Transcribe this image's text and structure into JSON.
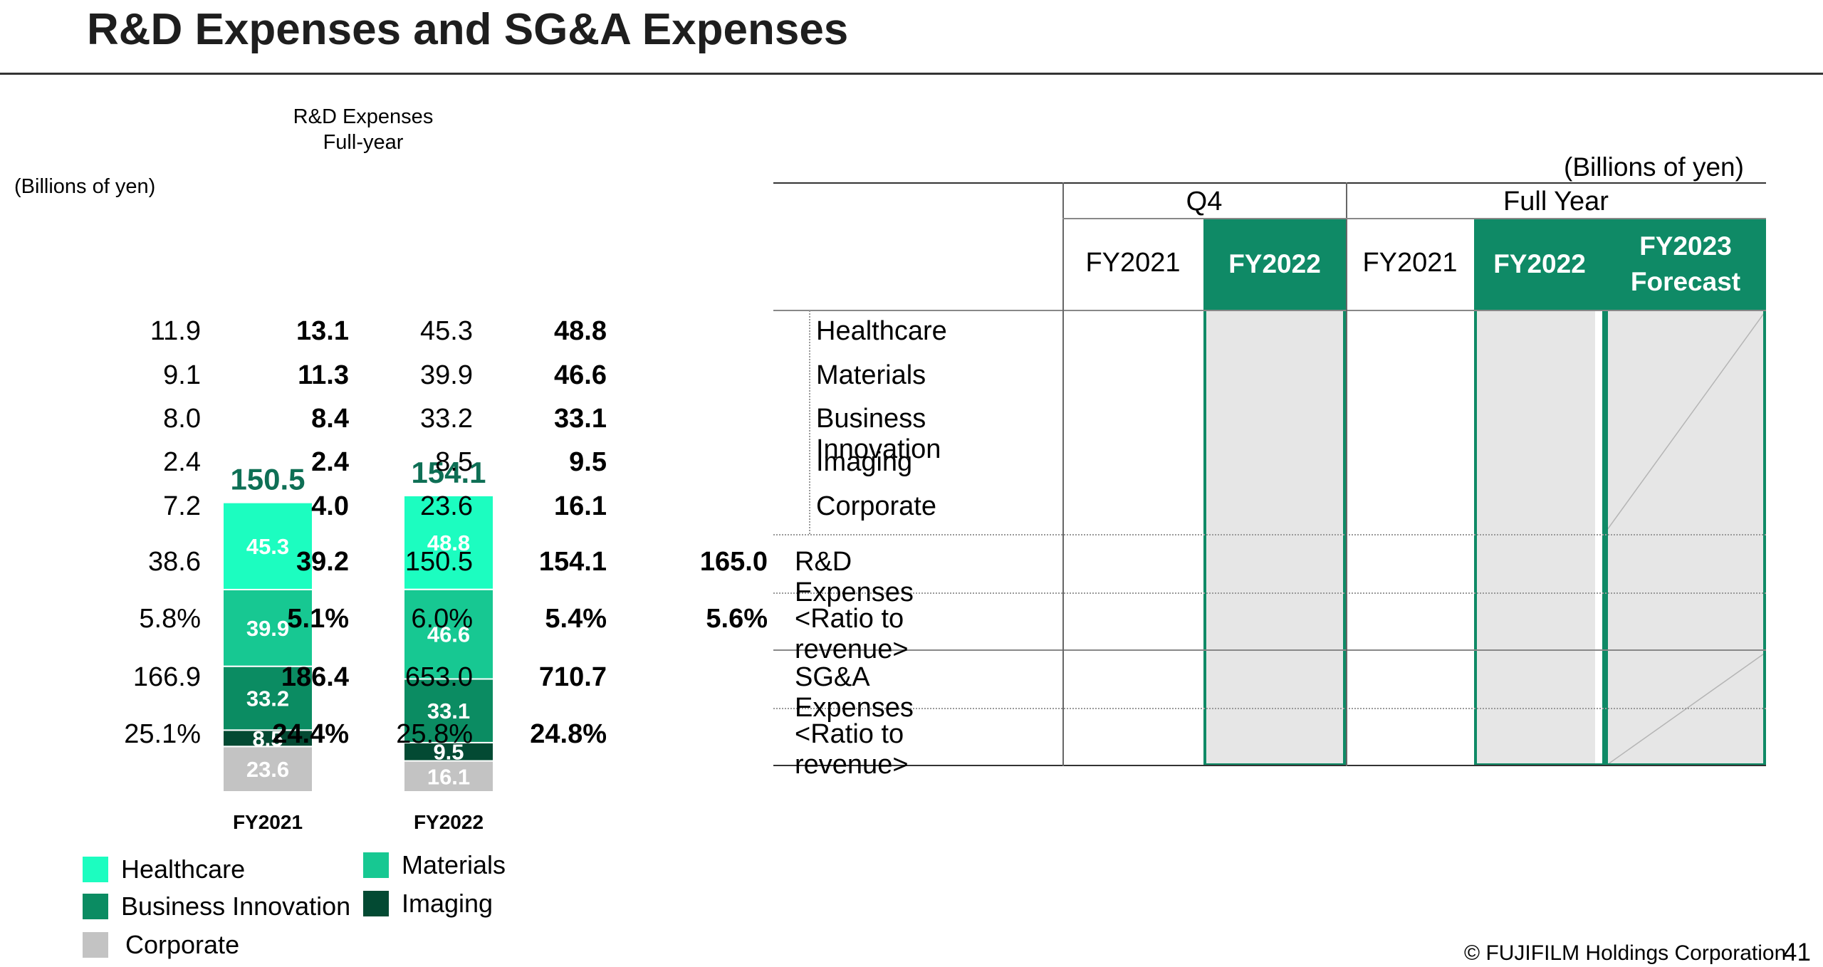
{
  "page": {
    "title": "R&D Expenses and SG&A Expenses",
    "footer": "© FUJIFILM Holdings Corporation",
    "page_number": "41"
  },
  "chart_data": {
    "type": "bar",
    "stacked": true,
    "title_line1": "R&D Expenses",
    "title_line2": "Full-year",
    "unit": "(Billions of yen)",
    "categories": [
      "FY2021",
      "FY2022"
    ],
    "totals": [
      "150.5",
      "154.1"
    ],
    "series": [
      {
        "name": "Corporate",
        "color": "#c3c3c3",
        "values": [
          23.6,
          16.1
        ]
      },
      {
        "name": "Imaging",
        "color": "#034a33",
        "values": [
          8.5,
          9.5
        ]
      },
      {
        "name": "Business Innovation",
        "color": "#0b8c62",
        "values": [
          33.2,
          33.1
        ]
      },
      {
        "name": "Materials",
        "color": "#17c892",
        "values": [
          39.9,
          46.6
        ]
      },
      {
        "name": "Healthcare",
        "color": "#1cfdc0",
        "values": [
          45.3,
          48.8
        ]
      }
    ],
    "legend_placement": "bottom"
  },
  "table": {
    "unit": "(Billions of yen)",
    "group_q4": "Q4",
    "group_fy": "Full Year",
    "columns": [
      "FY2021",
      "FY2022",
      "FY2021",
      "FY2022",
      "FY2023\nForecast"
    ],
    "rows": [
      {
        "label": "Healthcare",
        "values": [
          "11.9",
          "13.1",
          "45.3",
          "48.8",
          ""
        ]
      },
      {
        "label": "Materials",
        "values": [
          "9.1",
          "11.3",
          "39.9",
          "46.6",
          ""
        ]
      },
      {
        "label": "Business Innovation",
        "values": [
          "8.0",
          "8.4",
          "33.2",
          "33.1",
          ""
        ]
      },
      {
        "label": "Imaging",
        "values": [
          "2.4",
          "2.4",
          "8.5",
          "9.5",
          ""
        ]
      },
      {
        "label": "Corporate",
        "values": [
          "7.2",
          "4.0",
          "23.6",
          "16.1",
          ""
        ]
      },
      {
        "label": "R&D Expenses",
        "values": [
          "38.6",
          "39.2",
          "150.5",
          "154.1",
          "165.0"
        ]
      },
      {
        "label": "<Ratio to revenue>",
        "values": [
          "5.8%",
          "5.1%",
          "6.0%",
          "5.4%",
          "5.6%"
        ]
      },
      {
        "label": "SG&A Expenses",
        "values": [
          "166.9",
          "186.4",
          "653.0",
          "710.7",
          ""
        ]
      },
      {
        "label": "<Ratio to revenue>",
        "values": [
          "25.1%",
          "24.4%",
          "25.8%",
          "24.8%",
          ""
        ]
      }
    ]
  }
}
